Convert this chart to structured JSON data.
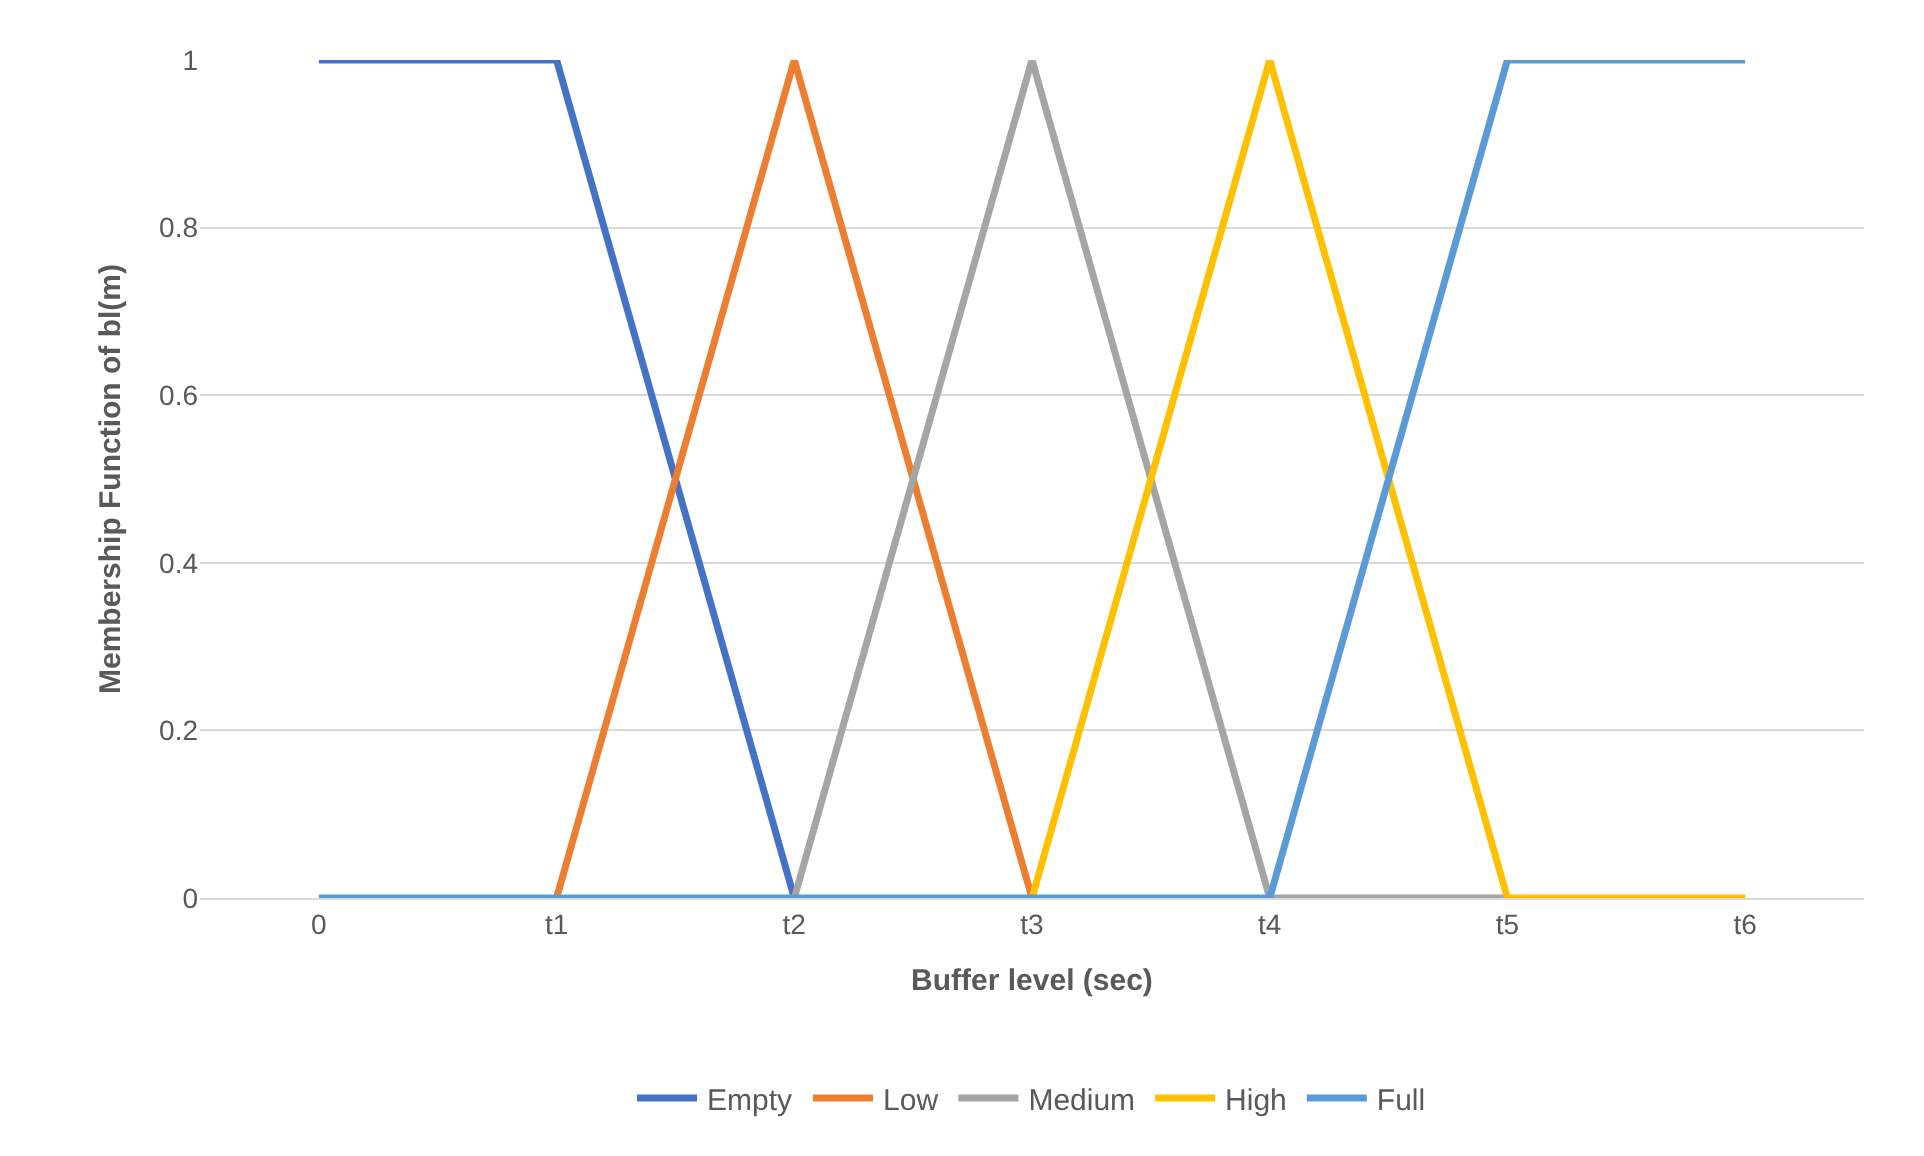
{
  "chart_data": {
    "type": "line",
    "xlabel": "Buffer level (sec)",
    "ylabel": "Membership Function of bl(m)",
    "categories": [
      "0",
      "t1",
      "t2",
      "t3",
      "t4",
      "t5",
      "t6"
    ],
    "series": [
      {
        "name": "Empty",
        "color": "#4472c4",
        "values": [
          1,
          1,
          0,
          null,
          null,
          null,
          null
        ]
      },
      {
        "name": "Low",
        "color": "#ed7d31",
        "values": [
          null,
          0,
          1,
          0,
          null,
          null,
          null
        ]
      },
      {
        "name": "Medium",
        "color": "#a5a5a5",
        "values": [
          null,
          null,
          0,
          1,
          0,
          0,
          null
        ]
      },
      {
        "name": "High",
        "color": "#ffc000",
        "values": [
          null,
          null,
          null,
          0,
          1,
          0,
          0
        ]
      },
      {
        "name": "Full",
        "color": "#5b9bd5",
        "values": [
          0,
          0,
          0,
          0,
          0,
          1,
          1
        ]
      }
    ],
    "ylim": [
      0,
      1
    ],
    "yticks": [
      0,
      0.2,
      0.4,
      0.6,
      0.8,
      1
    ],
    "grid": "y",
    "legend": "bottom",
    "marker": "none",
    "line_style": "solid"
  }
}
